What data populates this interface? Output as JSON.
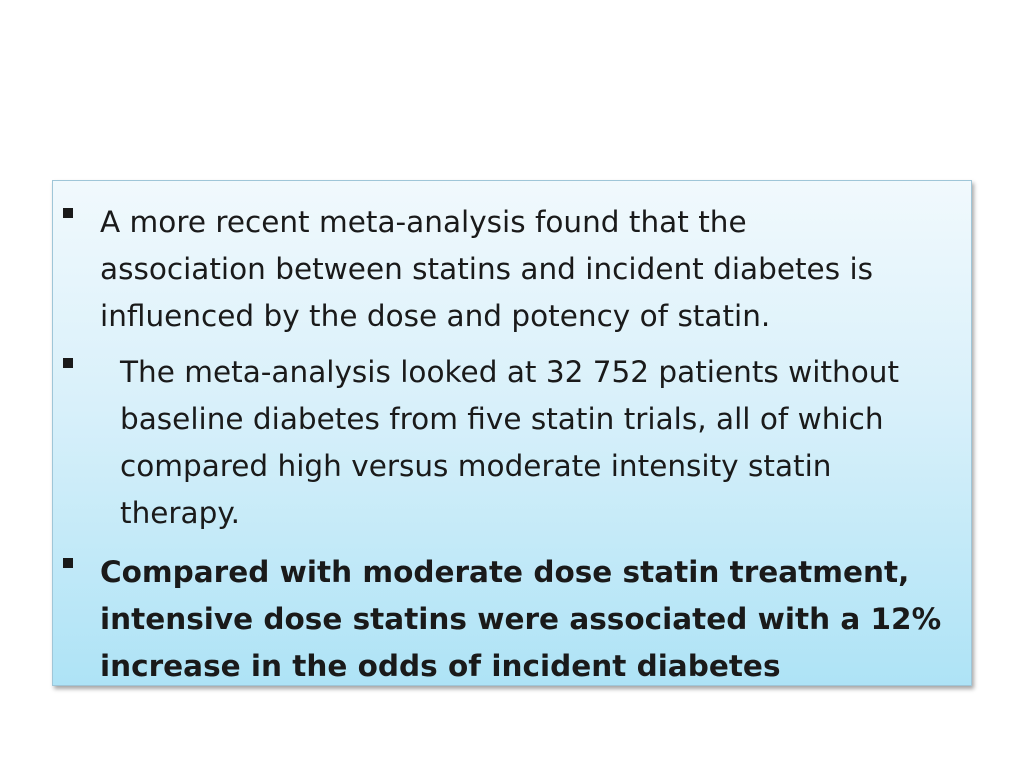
{
  "bullets": [
    {
      "lines": [
        "A more recent meta-analysis found that the",
        "association between statins and incident diabetes is",
        "influenced by the dose and potency of statin."
      ],
      "bold": false
    },
    {
      "lines": [
        "The meta-analysis looked at 32 752 patients without",
        "baseline diabetes from five statin trials, all of which",
        "compared high versus moderate intensity statin",
        "therapy."
      ],
      "bold": false
    },
    {
      "lines": [
        "Compared with moderate dose statin treatment,",
        "intensive dose statins were associated with a 12%",
        "increase in the odds of incident diabetes"
      ],
      "bold": true
    }
  ]
}
